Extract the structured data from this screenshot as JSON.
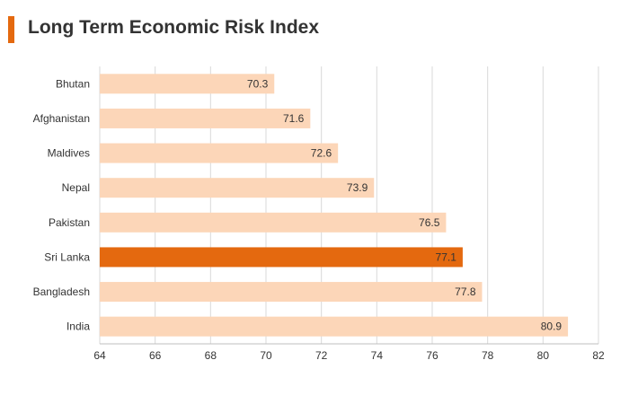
{
  "title": "Long Term Economic Risk Index",
  "colors": {
    "accent": "#e4690f",
    "bar": "#fcd6b8",
    "highlight": "#e4690f",
    "grid": "#d9d9d9",
    "text": "#333333"
  },
  "chart_data": {
    "type": "bar",
    "orientation": "horizontal",
    "title": "Long Term Economic Risk Index",
    "categories": [
      "Bhutan",
      "Afghanistan",
      "Maldives",
      "Nepal",
      "Pakistan",
      "Sri Lanka",
      "Bangladesh",
      "India"
    ],
    "values": [
      70.3,
      71.6,
      72.6,
      73.9,
      76.5,
      77.1,
      77.8,
      80.9
    ],
    "value_labels": [
      "70.3",
      "71.6",
      "72.6",
      "73.9",
      "76.5",
      "77.1",
      "77.8",
      "80.9"
    ],
    "highlight": "Sri Lanka",
    "xlim": [
      64,
      82
    ],
    "xticks": [
      "64",
      "66",
      "68",
      "70",
      "72",
      "74",
      "76",
      "78",
      "80",
      "82"
    ],
    "grid": true,
    "xlabel": "",
    "ylabel": ""
  }
}
